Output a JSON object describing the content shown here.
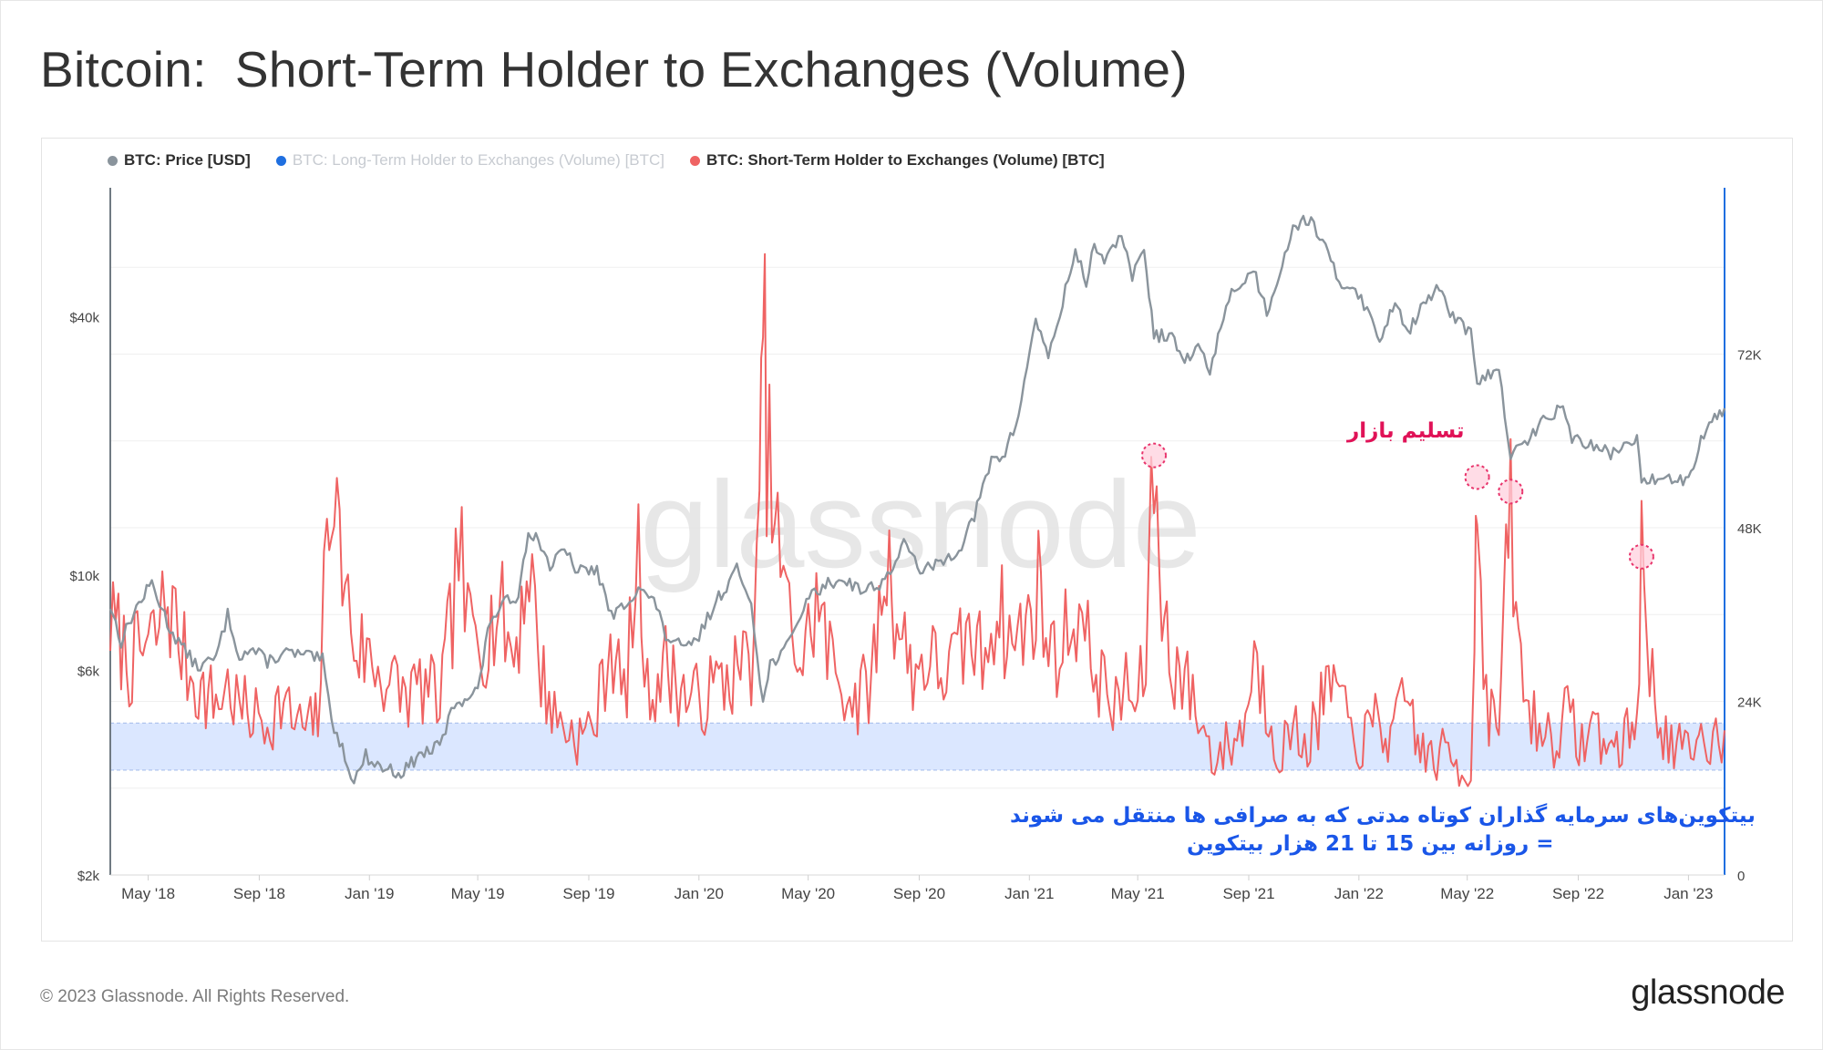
{
  "title": "Bitcoin:  Short-Term Holder to Exchanges (Volume)",
  "footer": {
    "copyright": "© 2023 Glassnode. All Rights Reserved.",
    "logo": "glassnode"
  },
  "watermark": "glassnode",
  "legend": [
    {
      "label": "BTC: Price [USD]",
      "color": "#8a949c",
      "active": true
    },
    {
      "label": "BTC: Long-Term Holder to Exchanges (Volume) [BTC]",
      "color": "#1f6fe0",
      "active": false
    },
    {
      "label": "BTC: Short-Term Holder to Exchanges (Volume) [BTC]",
      "color": "#ef6363",
      "active": true
    }
  ],
  "annotations": {
    "capitulation": "تسلیم بازار",
    "band_line1": "بیتکوین‌های سرمایه گذاران کوتاه مدتی که به صرافی ها منتقل می شوند",
    "band_line2": "= روزانه بین 15 تا 21 هزار بیتکوین"
  },
  "colors": {
    "price": "#8a949c",
    "sth_volume": "#ef6363",
    "band_fill": "#d9e6ff",
    "band_edge": "#a9c0ec",
    "marker": "#e8336b",
    "annotation_red": "#e01257",
    "annotation_blue": "#1a56e8",
    "right_axis": "#1f6fe0"
  },
  "chart_data": {
    "type": "line",
    "title": "Bitcoin:  Short-Term Holder to Exchanges (Volume)",
    "x_range": [
      "2018-03-20",
      "2023-02-10"
    ],
    "x_ticks": [
      "May '18",
      "Sep '18",
      "Jan '19",
      "May '19",
      "Sep '19",
      "Jan '20",
      "May '20",
      "Sep '20",
      "Jan '21",
      "May '21",
      "Sep '21",
      "Jan '22",
      "May '22",
      "Sep '22",
      "Jan '23"
    ],
    "y_left": {
      "scale": "log",
      "ticks": [
        "$2k",
        "$6k",
        "$10k",
        "$40k"
      ],
      "tick_values": [
        2000,
        6000,
        10000,
        40000
      ],
      "min": 2000,
      "max": 80000
    },
    "y_right": {
      "scale": "linear",
      "ticks": [
        "0",
        "24K",
        "48K",
        "72K"
      ],
      "tick_values": [
        0,
        24000,
        48000,
        72000
      ],
      "min": 0,
      "max": 95000
    },
    "band": {
      "axis": "right",
      "from": 14500,
      "to": 21000
    },
    "grid": true,
    "legend_position": "top-left",
    "series": [
      {
        "name": "BTC: Price [USD]",
        "axis": "left",
        "color": "#8a949c",
        "points": [
          [
            "2018-03-20",
            8500
          ],
          [
            "2018-04-01",
            7000
          ],
          [
            "2018-04-15",
            8200
          ],
          [
            "2018-05-05",
            9600
          ],
          [
            "2018-05-25",
            7500
          ],
          [
            "2018-06-10",
            6700
          ],
          [
            "2018-06-25",
            6100
          ],
          [
            "2018-07-15",
            6400
          ],
          [
            "2018-07-28",
            8100
          ],
          [
            "2018-08-10",
            6500
          ],
          [
            "2018-08-25",
            6700
          ],
          [
            "2018-09-10",
            6300
          ],
          [
            "2018-10-01",
            6600
          ],
          [
            "2018-10-20",
            6500
          ],
          [
            "2018-11-10",
            6350
          ],
          [
            "2018-11-20",
            4600
          ],
          [
            "2018-12-05",
            3800
          ],
          [
            "2018-12-15",
            3300
          ],
          [
            "2018-12-28",
            3800
          ],
          [
            "2019-01-10",
            3600
          ],
          [
            "2019-02-05",
            3450
          ],
          [
            "2019-02-25",
            3800
          ],
          [
            "2019-03-20",
            4000
          ],
          [
            "2019-04-05",
            5000
          ],
          [
            "2019-05-01",
            5400
          ],
          [
            "2019-05-15",
            7900
          ],
          [
            "2019-05-31",
            8600
          ],
          [
            "2019-06-15",
            9000
          ],
          [
            "2019-06-26",
            12800
          ],
          [
            "2019-07-10",
            11800
          ],
          [
            "2019-07-20",
            10500
          ],
          [
            "2019-08-05",
            11400
          ],
          [
            "2019-08-20",
            10200
          ],
          [
            "2019-09-10",
            10300
          ],
          [
            "2019-09-26",
            8000
          ],
          [
            "2019-10-10",
            8500
          ],
          [
            "2019-10-26",
            9400
          ],
          [
            "2019-11-15",
            8500
          ],
          [
            "2019-11-25",
            7200
          ],
          [
            "2019-12-18",
            6700
          ],
          [
            "2020-01-01",
            7200
          ],
          [
            "2020-01-20",
            8700
          ],
          [
            "2020-02-12",
            10300
          ],
          [
            "2020-02-28",
            8700
          ],
          [
            "2020-03-12",
            5000
          ],
          [
            "2020-03-20",
            6200
          ],
          [
            "2020-04-10",
            6900
          ],
          [
            "2020-04-29",
            8800
          ],
          [
            "2020-05-20",
            9500
          ],
          [
            "2020-06-10",
            9800
          ],
          [
            "2020-07-01",
            9200
          ],
          [
            "2020-07-25",
            9700
          ],
          [
            "2020-08-15",
            11800
          ],
          [
            "2020-09-05",
            10200
          ],
          [
            "2020-09-25",
            10700
          ],
          [
            "2020-10-15",
            11500
          ],
          [
            "2020-11-01",
            13700
          ],
          [
            "2020-11-20",
            18500
          ],
          [
            "2020-12-05",
            19200
          ],
          [
            "2020-12-20",
            23500
          ],
          [
            "2021-01-08",
            40000
          ],
          [
            "2021-01-22",
            32000
          ],
          [
            "2021-02-10",
            46000
          ],
          [
            "2021-02-21",
            57000
          ],
          [
            "2021-03-05",
            48000
          ],
          [
            "2021-03-14",
            60000
          ],
          [
            "2021-03-25",
            52500
          ],
          [
            "2021-04-13",
            63500
          ],
          [
            "2021-04-25",
            49000
          ],
          [
            "2021-05-08",
            58000
          ],
          [
            "2021-05-19",
            36000
          ],
          [
            "2021-06-05",
            36500
          ],
          [
            "2021-06-22",
            31500
          ],
          [
            "2021-07-10",
            34000
          ],
          [
            "2021-07-20",
            29800
          ],
          [
            "2021-08-10",
            45000
          ],
          [
            "2021-08-28",
            48500
          ],
          [
            "2021-09-06",
            52000
          ],
          [
            "2021-09-21",
            41000
          ],
          [
            "2021-10-05",
            51000
          ],
          [
            "2021-10-20",
            65000
          ],
          [
            "2021-11-09",
            68000
          ],
          [
            "2021-11-25",
            57500
          ],
          [
            "2021-12-10",
            48000
          ],
          [
            "2021-12-28",
            47000
          ],
          [
            "2022-01-10",
            41500
          ],
          [
            "2022-01-24",
            35000
          ],
          [
            "2022-02-10",
            44000
          ],
          [
            "2022-02-24",
            37000
          ],
          [
            "2022-03-28",
            47300
          ],
          [
            "2022-04-15",
            40000
          ],
          [
            "2022-05-05",
            36500
          ],
          [
            "2022-05-12",
            28500
          ],
          [
            "2022-06-05",
            30000
          ],
          [
            "2022-06-18",
            18800
          ],
          [
            "2022-07-10",
            21000
          ],
          [
            "2022-07-30",
            23800
          ],
          [
            "2022-08-15",
            24300
          ],
          [
            "2022-08-25",
            21000
          ],
          [
            "2022-09-15",
            20000
          ],
          [
            "2022-10-10",
            19200
          ],
          [
            "2022-11-05",
            21000
          ],
          [
            "2022-11-10",
            16200
          ],
          [
            "2022-12-01",
            17000
          ],
          [
            "2022-12-20",
            16800
          ],
          [
            "2023-01-01",
            16600
          ],
          [
            "2023-01-15",
            21000
          ],
          [
            "2023-01-30",
            23500
          ],
          [
            "2023-02-10",
            24500
          ]
        ]
      },
      {
        "name": "BTC: Short-Term Holder to Exchanges (Volume) [BTC]",
        "axis": "right",
        "color": "#ef6363",
        "points": [
          [
            "2018-03-20",
            35000
          ],
          [
            "2018-04-01",
            32000
          ],
          [
            "2018-04-10",
            29000
          ],
          [
            "2018-04-25",
            31000
          ],
          [
            "2018-05-10",
            33000
          ],
          [
            "2018-05-20",
            38000
          ],
          [
            "2018-05-28",
            36000
          ],
          [
            "2018-06-10",
            30000
          ],
          [
            "2018-06-20",
            27000
          ],
          [
            "2018-07-01",
            25000
          ],
          [
            "2018-07-15",
            24000
          ],
          [
            "2018-07-28",
            26000
          ],
          [
            "2018-08-10",
            23000
          ],
          [
            "2018-08-25",
            22000
          ],
          [
            "2018-09-10",
            21000
          ],
          [
            "2018-09-25",
            24000
          ],
          [
            "2018-10-10",
            21000
          ],
          [
            "2018-10-25",
            20000
          ],
          [
            "2018-11-05",
            22000
          ],
          [
            "2018-11-15",
            45000
          ],
          [
            "2018-11-20",
            58000
          ],
          [
            "2018-11-26",
            48000
          ],
          [
            "2018-12-05",
            40000
          ],
          [
            "2018-12-15",
            32000
          ],
          [
            "2019-01-01",
            30000
          ],
          [
            "2019-01-20",
            27000
          ],
          [
            "2019-02-10",
            25000
          ],
          [
            "2019-03-01",
            26000
          ],
          [
            "2019-03-20",
            24000
          ],
          [
            "2019-04-03",
            36000
          ],
          [
            "2019-04-10",
            46000
          ],
          [
            "2019-04-20",
            34000
          ],
          [
            "2019-05-10",
            33000
          ],
          [
            "2019-05-25",
            37000
          ],
          [
            "2019-06-10",
            30000
          ],
          [
            "2019-06-27",
            44000
          ],
          [
            "2019-07-10",
            28000
          ],
          [
            "2019-07-25",
            22000
          ],
          [
            "2019-08-10",
            20000
          ],
          [
            "2019-08-25",
            19000
          ],
          [
            "2019-09-10",
            22000
          ],
          [
            "2019-09-25",
            33000
          ],
          [
            "2019-10-10",
            24000
          ],
          [
            "2019-10-26",
            43000
          ],
          [
            "2019-11-05",
            25000
          ],
          [
            "2019-11-25",
            29000
          ],
          [
            "2019-12-15",
            25000
          ],
          [
            "2020-01-01",
            24000
          ],
          [
            "2020-01-20",
            26000
          ],
          [
            "2020-02-10",
            28000
          ],
          [
            "2020-02-28",
            30000
          ],
          [
            "2020-03-08",
            45000
          ],
          [
            "2020-03-12",
            82000
          ],
          [
            "2020-03-16",
            60000
          ],
          [
            "2020-03-25",
            48000
          ],
          [
            "2020-04-10",
            35000
          ],
          [
            "2020-04-25",
            29000
          ],
          [
            "2020-05-10",
            38000
          ],
          [
            "2020-05-25",
            30000
          ],
          [
            "2020-06-10",
            26000
          ],
          [
            "2020-06-25",
            24000
          ],
          [
            "2020-07-10",
            27000
          ],
          [
            "2020-07-27",
            44000
          ],
          [
            "2020-08-10",
            34000
          ],
          [
            "2020-08-25",
            28000
          ],
          [
            "2020-09-10",
            30000
          ],
          [
            "2020-09-25",
            28000
          ],
          [
            "2020-10-10",
            29000
          ],
          [
            "2020-10-26",
            33000
          ],
          [
            "2020-11-10",
            30000
          ],
          [
            "2020-11-26",
            38000
          ],
          [
            "2020-12-10",
            32000
          ],
          [
            "2020-12-28",
            34000
          ],
          [
            "2021-01-11",
            40000
          ],
          [
            "2021-01-25",
            30000
          ],
          [
            "2021-02-10",
            33000
          ],
          [
            "2021-02-22",
            37000
          ],
          [
            "2021-03-10",
            30000
          ],
          [
            "2021-03-25",
            26000
          ],
          [
            "2021-04-10",
            22000
          ],
          [
            "2021-04-18",
            28000
          ],
          [
            "2021-04-28",
            22000
          ],
          [
            "2021-05-10",
            30000
          ],
          [
            "2021-05-19",
            58000
          ],
          [
            "2021-05-25",
            42000
          ],
          [
            "2021-06-05",
            30000
          ],
          [
            "2021-06-22",
            27000
          ],
          [
            "2021-07-10",
            21000
          ],
          [
            "2021-07-25",
            16000
          ],
          [
            "2021-08-10",
            18000
          ],
          [
            "2021-08-25",
            20000
          ],
          [
            "2021-09-07",
            30000
          ],
          [
            "2021-09-20",
            24000
          ],
          [
            "2021-10-05",
            17000
          ],
          [
            "2021-10-20",
            20000
          ],
          [
            "2021-11-05",
            18000
          ],
          [
            "2021-11-20",
            23000
          ],
          [
            "2021-12-04",
            27000
          ],
          [
            "2021-12-20",
            20000
          ],
          [
            "2022-01-05",
            18000
          ],
          [
            "2022-01-22",
            22000
          ],
          [
            "2022-02-05",
            18000
          ],
          [
            "2022-02-24",
            25000
          ],
          [
            "2022-03-10",
            17000
          ],
          [
            "2022-03-25",
            16000
          ],
          [
            "2022-04-10",
            17000
          ],
          [
            "2022-04-25",
            14000
          ],
          [
            "2022-05-05",
            15000
          ],
          [
            "2022-05-09",
            35000
          ],
          [
            "2022-05-12",
            55000
          ],
          [
            "2022-05-16",
            38000
          ],
          [
            "2022-05-25",
            22000
          ],
          [
            "2022-06-05",
            21000
          ],
          [
            "2022-06-13",
            40000
          ],
          [
            "2022-06-18",
            53000
          ],
          [
            "2022-06-24",
            34000
          ],
          [
            "2022-07-05",
            24000
          ],
          [
            "2022-07-20",
            20000
          ],
          [
            "2022-08-05",
            19000
          ],
          [
            "2022-08-20",
            22000
          ],
          [
            "2022-09-05",
            18000
          ],
          [
            "2022-09-20",
            21000
          ],
          [
            "2022-10-05",
            17000
          ],
          [
            "2022-10-25",
            19000
          ],
          [
            "2022-11-05",
            22000
          ],
          [
            "2022-11-10",
            44000
          ],
          [
            "2022-11-16",
            32000
          ],
          [
            "2022-11-25",
            24000
          ],
          [
            "2022-12-10",
            18000
          ],
          [
            "2022-12-25",
            17000
          ],
          [
            "2023-01-10",
            16000
          ],
          [
            "2023-01-15",
            22000
          ],
          [
            "2023-01-25",
            18000
          ],
          [
            "2023-02-10",
            20000
          ]
        ]
      }
    ],
    "highlighted_peaks": [
      {
        "date": "2021-05-19",
        "value": 58000
      },
      {
        "date": "2022-05-12",
        "value": 55000
      },
      {
        "date": "2022-06-18",
        "value": 53000
      },
      {
        "date": "2022-11-10",
        "value": 44000
      }
    ]
  }
}
